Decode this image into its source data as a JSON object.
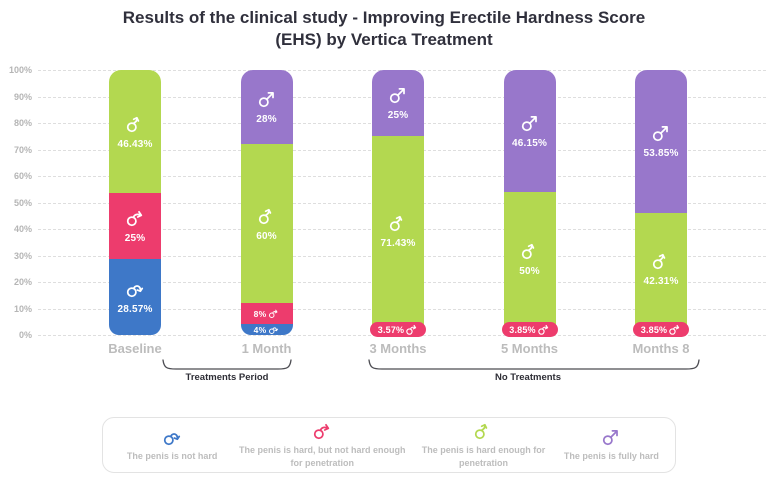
{
  "title": {
    "line1": "Results of the clinical study - Improving Erectile Hardness Score",
    "line2": "(EHS) by Vertica Treatment"
  },
  "colors": {
    "not_hard_blue": "#3e78c8",
    "semi_hard_pink": "#ed3c6d",
    "almost_hard_green": "#b3d850",
    "fully_hard_purple": "#9877cb",
    "title_text": "#30303c",
    "axis_text": "#b5b5b5",
    "category_text": "#bcbcbc",
    "gridline": "#dedede"
  },
  "chart_data": {
    "type": "bar",
    "stacked": true,
    "title": "Results of the clinical study - Improving Erectile Hardness Score (EHS) by Vertica Treatment",
    "xlabel": "",
    "ylabel": "",
    "ylim": [
      0,
      100
    ],
    "ytick_step": 10,
    "ytick_suffix": "%",
    "grid": "dashed-horizontal",
    "legend_position": "bottom",
    "categories": [
      "Baseline",
      "1 Month",
      "3 Months",
      "5 Months",
      "Months 8"
    ],
    "series": [
      {
        "key": "not-hard",
        "name": "The penis is not hard",
        "color": "#3e78c8",
        "values": [
          28.57,
          4,
          0,
          0,
          0
        ]
      },
      {
        "key": "semi-hard",
        "name": "The penis is hard, but not hard enough for penetration",
        "color": "#ed3c6d",
        "values": [
          25,
          8,
          3.57,
          3.85,
          3.85
        ]
      },
      {
        "key": "almost-hard",
        "name": "The penis is hard enough for penetration",
        "color": "#b3d850",
        "values": [
          46.43,
          60,
          71.43,
          50,
          42.31
        ]
      },
      {
        "key": "fully-hard",
        "name": "The penis is fully hard",
        "color": "#9877cb",
        "values": [
          0,
          28,
          25,
          46.15,
          53.85
        ]
      }
    ],
    "bars": [
      {
        "category": "Baseline",
        "segments": [
          {
            "series": 0,
            "value": 28.57,
            "label": "28.57%",
            "display": "stacked"
          },
          {
            "series": 1,
            "value": 25,
            "label": "25%",
            "display": "stacked"
          },
          {
            "series": 2,
            "value": 46.43,
            "label": "46.43%",
            "display": "stacked"
          }
        ]
      },
      {
        "category": "1 Month",
        "segments": [
          {
            "series": 0,
            "value": 4,
            "label": "4%",
            "display": "inline"
          },
          {
            "series": 1,
            "value": 8,
            "label": "8%",
            "display": "inline"
          },
          {
            "series": 2,
            "value": 60,
            "label": "60%",
            "display": "stacked"
          },
          {
            "series": 3,
            "value": 28,
            "label": "28%",
            "display": "stacked"
          }
        ]
      },
      {
        "category": "3 Months",
        "segments": [
          {
            "series": 1,
            "value": 3.57,
            "label": "3.57%",
            "display": "pill"
          },
          {
            "series": 2,
            "value": 71.43,
            "label": "71.43%",
            "display": "stacked"
          },
          {
            "series": 3,
            "value": 25,
            "label": "25%",
            "display": "stacked"
          }
        ]
      },
      {
        "category": "5 Months",
        "segments": [
          {
            "series": 1,
            "value": 3.85,
            "label": "3.85%",
            "display": "pill"
          },
          {
            "series": 2,
            "value": 50,
            "label": "50%",
            "display": "stacked"
          },
          {
            "series": 3,
            "value": 46.15,
            "label": "46.15%",
            "display": "stacked"
          }
        ]
      },
      {
        "category": "Months 8",
        "segments": [
          {
            "series": 1,
            "value": 3.85,
            "label": "3.85%",
            "display": "pill"
          },
          {
            "series": 2,
            "value": 42.31,
            "label": "42.31%",
            "display": "stacked"
          },
          {
            "series": 3,
            "value": 53.85,
            "label": "53.85%",
            "display": "stacked"
          }
        ]
      }
    ],
    "annotations": [
      {
        "label": "Treatments Period",
        "covers": [
          "Baseline",
          "1 Month"
        ]
      },
      {
        "label": "No Treatments",
        "covers": [
          "3 Months",
          "5 Months",
          "Months 8"
        ]
      }
    ]
  },
  "brackets": {
    "treatments_period": "Treatments Period",
    "no_treatments": "No Treatments"
  },
  "legend": {
    "items": [
      {
        "key": "not-hard",
        "icon": "mars-drooping-down-icon",
        "color": "#3e78c8",
        "label": "The penis is not hard"
      },
      {
        "key": "semi-hard",
        "icon": "mars-curved-sideways-icon",
        "color": "#ed3c6d",
        "label": "The penis is hard, but not hard enough for penetration"
      },
      {
        "key": "almost-hard",
        "icon": "mars-curved-up-icon",
        "color": "#b3d850",
        "label": "The penis is hard enough for penetration"
      },
      {
        "key": "fully-hard",
        "icon": "mars-straight-up-icon",
        "color": "#9877cb",
        "label": "The penis is fully hard"
      }
    ]
  }
}
